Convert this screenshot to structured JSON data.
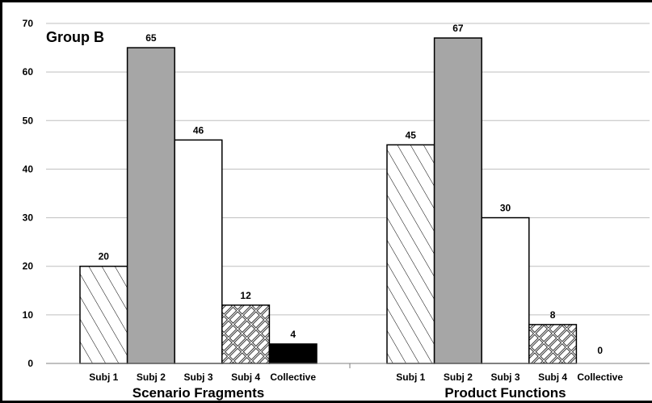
{
  "chart_data": {
    "type": "bar",
    "title": "Group B",
    "ylim": [
      0,
      70
    ],
    "yticks": [
      0,
      10,
      20,
      30,
      40,
      50,
      60,
      70
    ],
    "grid": true,
    "groups": [
      {
        "name": "Scenario Fragments",
        "categories": [
          "Subj 1",
          "Subj 2",
          "Subj 3",
          "Subj 4",
          "Collective"
        ],
        "values": [
          20,
          65,
          46,
          12,
          4
        ]
      },
      {
        "name": "Product Functions",
        "categories": [
          "Subj 1",
          "Subj 2",
          "Subj 3",
          "Subj 4",
          "Collective"
        ],
        "values": [
          45,
          67,
          30,
          8,
          0
        ]
      }
    ],
    "bar_styles": [
      "diagonal-hatch",
      "gray",
      "white",
      "basket-weave",
      "black"
    ],
    "colors": {
      "gray": "#a6a6a6",
      "black": "#000000",
      "white": "#ffffff",
      "grid": "#bfbfbf"
    }
  }
}
